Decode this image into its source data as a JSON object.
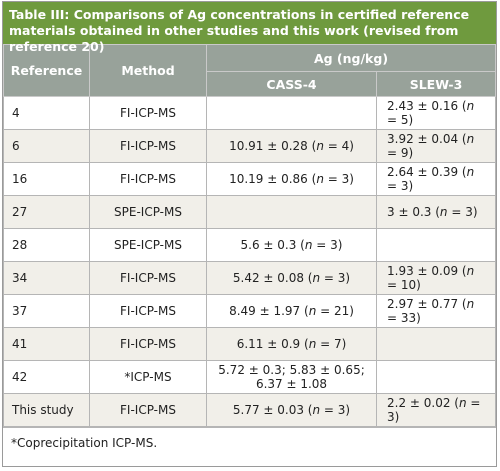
{
  "title": {
    "label": "Table III:",
    "text": " Comparisons of Ag concentrations in certified reference materials obtained in other studies and this work (revised from reference 20)"
  },
  "table": {
    "header": {
      "reference": "Reference",
      "method": "Method",
      "group": "Ag (ng/kg)",
      "columns": [
        "CASS-4",
        "SLEW-3"
      ]
    },
    "rows": [
      [
        "4",
        "FI-ICP-MS",
        null,
        "2.43 ± 0.16 (n = 5)"
      ],
      [
        "6",
        "FI-ICP-MS",
        "10.91 ± 0.28 (n = 4)",
        "3.92 ± 0.04 (n = 9)"
      ],
      [
        "16",
        "FI-ICP-MS",
        "10.19 ± 0.86 (n = 3)",
        "2.64 ± 0.39 (n = 3)"
      ],
      [
        "27",
        "SPE-ICP-MS",
        null,
        "3 ± 0.3 (n = 3)"
      ],
      [
        "28",
        "SPE-ICP-MS",
        "5.6 ± 0.3 (n = 3)",
        null
      ],
      [
        "34",
        "FI-ICP-MS",
        "5.42 ± 0.08 (n = 3)",
        "1.93 ± 0.09 (n = 10)"
      ],
      [
        "37",
        "FI-ICP-MS",
        "8.49 ± 1.97 (n = 21)",
        "2.97 ± 0.77 (n = 33)"
      ],
      [
        "41",
        "FI-ICP-MS",
        "6.11 ± 0.9 (n = 7)",
        null
      ],
      [
        "42",
        "*ICP-MS",
        "5.72 ± 0.3; 5.83 ± 0.65; 6.37 ± 1.08",
        null
      ],
      [
        "This study",
        "FI-ICP-MS",
        "5.77 ± 0.03 (n = 3)",
        "2.2 ± 0.02 (n = 3)"
      ]
    ]
  },
  "footnote": "*Coprecipitation ICP-MS."
}
